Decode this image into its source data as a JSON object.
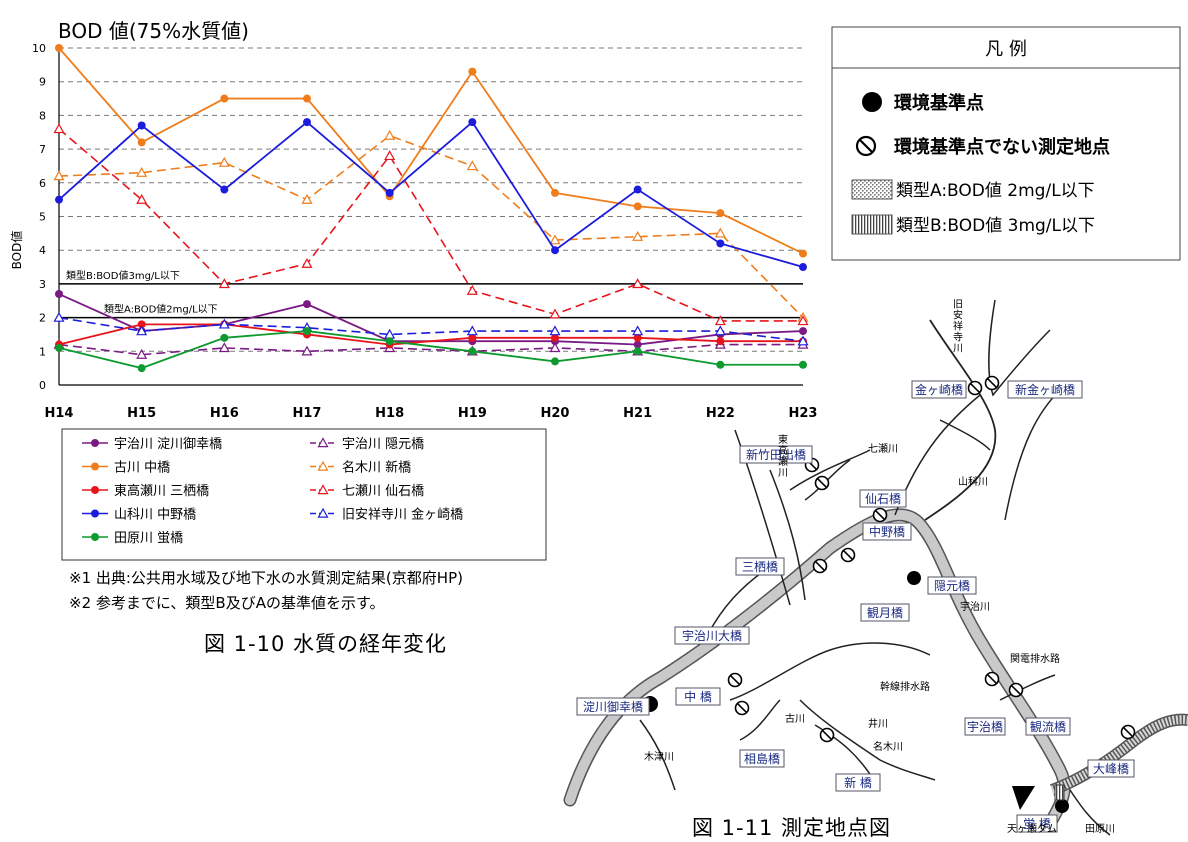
{
  "chart_data": {
    "type": "line",
    "title": "BOD 値(75%水質値)",
    "ylabel": "BOD値",
    "xlabel": "",
    "categories": [
      "H14",
      "H15",
      "H16",
      "H17",
      "H18",
      "H19",
      "H20",
      "H21",
      "H22",
      "H23"
    ],
    "y_ticks": [
      "0",
      "1",
      "2",
      "3",
      "4",
      "5",
      "6",
      "7",
      "8",
      "9",
      "10"
    ],
    "ylim": [
      0,
      10
    ],
    "grid": true,
    "legend_position": "bottom",
    "series": [
      {
        "name": "宇治川 淀川御幸橋",
        "values": [
          2.7,
          1.6,
          1.8,
          2.4,
          1.3,
          1.3,
          1.3,
          1.2,
          1.5,
          1.6
        ],
        "color": "#7a1a84",
        "dash": false,
        "marker": "dot"
      },
      {
        "name": "宇治川 隠元橋",
        "values": [
          1.2,
          0.9,
          1.1,
          1.0,
          1.1,
          1.0,
          1.1,
          1.0,
          1.2,
          1.2
        ],
        "color": "#7a1a84",
        "dash": true,
        "marker": "triangle"
      },
      {
        "name": "古川 中橋",
        "values": [
          10.0,
          7.2,
          8.5,
          8.5,
          5.6,
          9.3,
          5.7,
          5.3,
          5.1,
          3.9
        ],
        "color": "#f07d1c",
        "dash": false,
        "marker": "dot"
      },
      {
        "name": "名木川 新橋",
        "values": [
          6.2,
          6.3,
          6.6,
          5.5,
          7.4,
          6.5,
          4.3,
          4.4,
          4.5,
          2.0
        ],
        "color": "#f07d1c",
        "dash": true,
        "marker": "triangle"
      },
      {
        "name": "東高瀬川 三栖橋",
        "values": [
          1.2,
          1.8,
          1.8,
          1.5,
          1.2,
          1.4,
          1.4,
          1.4,
          1.3,
          1.3
        ],
        "color": "#e8141c",
        "dash": false,
        "marker": "dot"
      },
      {
        "name": "七瀬川 仙石橋",
        "values": [
          7.6,
          5.5,
          3.0,
          3.6,
          6.8,
          2.8,
          2.1,
          3.0,
          1.9,
          1.9
        ],
        "color": "#e8141c",
        "dash": true,
        "marker": "triangle"
      },
      {
        "name": "山科川 中野橋",
        "values": [
          5.5,
          7.7,
          5.8,
          7.8,
          5.7,
          7.8,
          4.0,
          5.8,
          4.2,
          3.5
        ],
        "color": "#1c1cdc",
        "dash": false,
        "marker": "dot"
      },
      {
        "name": "旧安祥寺川 金ヶ崎橋",
        "values": [
          2.0,
          1.6,
          1.8,
          1.7,
          1.5,
          1.6,
          1.6,
          1.6,
          1.6,
          1.3
        ],
        "color": "#1c1cdc",
        "dash": true,
        "marker": "triangle"
      },
      {
        "name": "田原川 蛍橋",
        "values": [
          1.1,
          0.5,
          1.4,
          1.6,
          1.3,
          1.0,
          0.7,
          1.0,
          0.6,
          0.6
        ],
        "color": "#0d9a2e",
        "dash": false,
        "marker": "dot"
      }
    ],
    "reference_lines": [
      {
        "value": 3,
        "label": "類型B:BOD値3mg/L以下"
      },
      {
        "value": 2,
        "label": "類型A:BOD値2mg/L以下"
      }
    ]
  },
  "notes": [
    "※1 出典:公共用水域及び地下水の水質測定結果(京都府HP)",
    "※2 参考までに、類型B及びAの基準値を示す。"
  ],
  "figure_caption_chart": "図 1-10 水質の経年変化",
  "figure_caption_map": "図 1-11 測定地点図",
  "map_legend": {
    "title": "凡 例",
    "items": [
      {
        "symbol": "filled-circle-icon",
        "label": "環境基準点"
      },
      {
        "symbol": "prohibited-circle-icon",
        "label": "環境基準点でない測定地点"
      },
      {
        "symbol": "dotted-hatch-icon",
        "label": "類型A:BOD値 2mg/L以下"
      },
      {
        "symbol": "vertical-hatch-icon",
        "label": "類型B:BOD値 3mg/L以下"
      }
    ]
  },
  "map": {
    "boxed_labels": [
      "金ヶ崎橋",
      "新金ヶ崎橋",
      "新竹田出橋",
      "仙石橋",
      "中野橋",
      "三栖橋",
      "隠元橋",
      "観月橋",
      "宇治川大橋",
      "中 橋",
      "淀川御幸橋",
      "相島橋",
      "新 橋",
      "宇治橋",
      "観流橋",
      "大峰橋",
      "蛍 橋"
    ],
    "river_labels": [
      "旧安祥寺川",
      "七瀬川",
      "山科川",
      "東高瀬川",
      "宇治川",
      "幹線排水路",
      "関電排水路",
      "古川",
      "井川",
      "名木川",
      "木津川",
      "天ヶ瀬ダム",
      "田原川"
    ]
  }
}
